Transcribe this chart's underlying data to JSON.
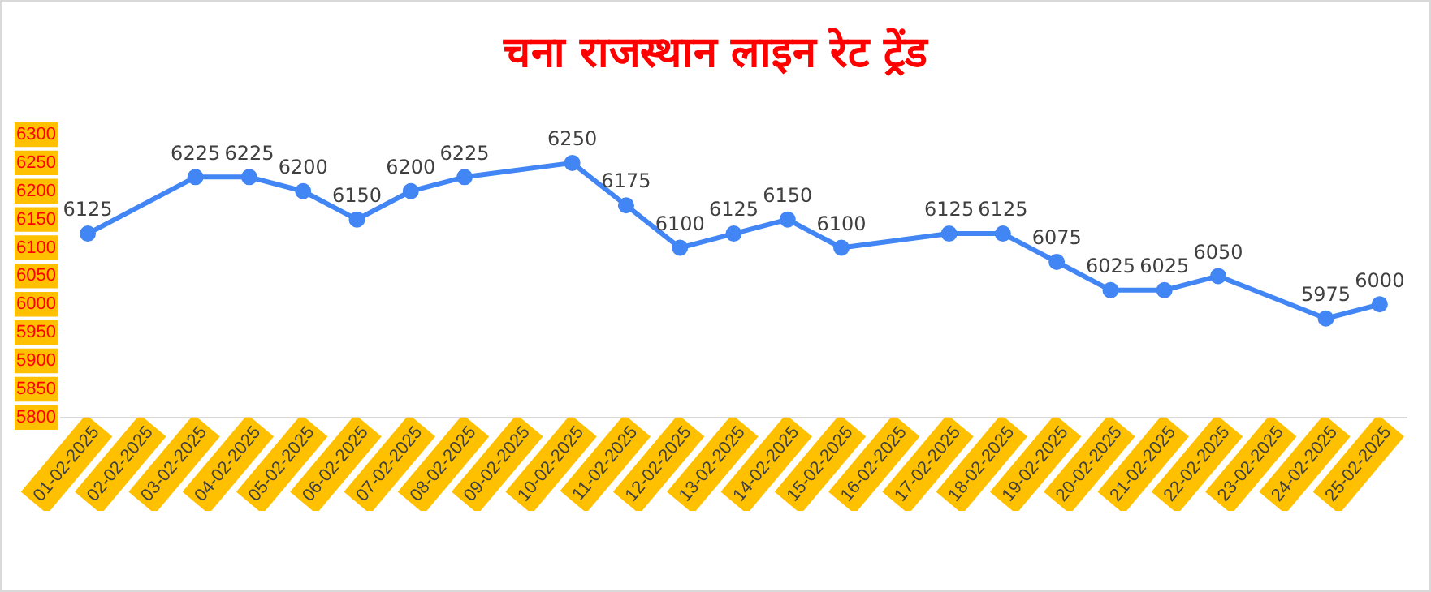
{
  "chart_data": {
    "type": "line",
    "title": "चना राजस्थान लाइन रेट ट्रेंड",
    "categories": [
      "01-02-2025",
      "02-02-2025",
      "03-02-2025",
      "04-02-2025",
      "05-02-2025",
      "06-02-2025",
      "07-02-2025",
      "08-02-2025",
      "09-02-2025",
      "10-02-2025",
      "11-02-2025",
      "12-02-2025",
      "13-02-2025",
      "14-02-2025",
      "15-02-2025",
      "16-02-2025",
      "17-02-2025",
      "18-02-2025",
      "19-02-2025",
      "20-02-2025",
      "21-02-2025",
      "22-02-2025",
      "23-02-2025",
      "24-02-2025",
      "25-02-2025"
    ],
    "series": [
      {
        "color": "#4285f4",
        "values": [
          6125,
          null,
          6225,
          6225,
          6200,
          6150,
          6200,
          6225,
          null,
          6250,
          6175,
          6100,
          6125,
          6150,
          6100,
          null,
          6125,
          6125,
          6075,
          6025,
          6025,
          6050,
          null,
          5975,
          6000
        ]
      }
    ],
    "ylim": [
      5800,
      6300
    ],
    "yticks": [
      5800,
      5850,
      5900,
      5950,
      6000,
      6050,
      6100,
      6150,
      6200,
      6250,
      6300
    ],
    "grid": false,
    "legend": false,
    "marker": "circle",
    "line_style": "solid",
    "data_labels": true
  }
}
